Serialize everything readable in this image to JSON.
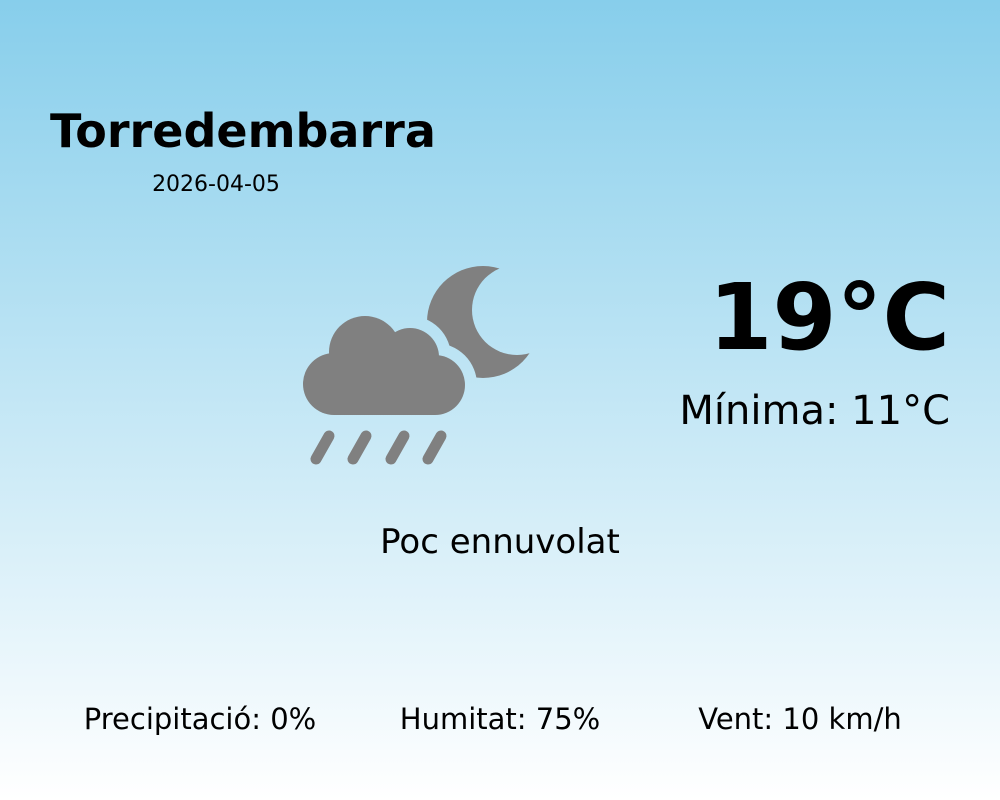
{
  "location": {
    "city": "Torredembarra",
    "date": "2026-04-05"
  },
  "current": {
    "temperature": "19°C",
    "minimum": "Mínima: 11°C",
    "description": "Poc ennuvolat",
    "icon": "cloud-rain-moon-icon",
    "icon_color": "#808080"
  },
  "stats": {
    "precipitation": "Precipitació: 0%",
    "humidity": "Humitat: 75%",
    "wind": "Vent: 10 km/h"
  },
  "colors": {
    "background_top": "#87CEEB",
    "background_bottom": "#ffffff"
  }
}
